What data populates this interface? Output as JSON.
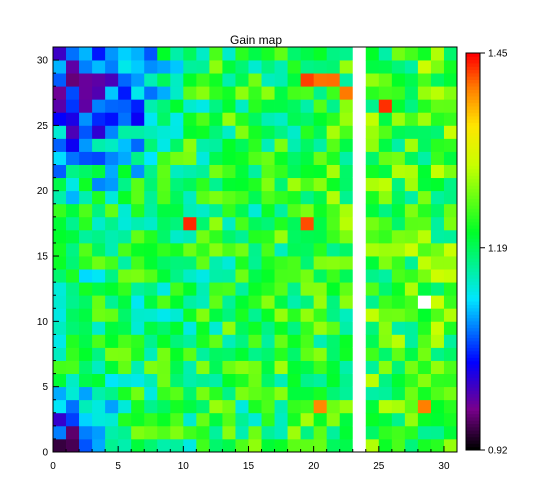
{
  "chart_data": {
    "type": "heatmap",
    "title": "Gain map",
    "xlabel": "",
    "ylabel": "",
    "xlim": [
      0,
      31
    ],
    "ylim": [
      0,
      31
    ],
    "x_ticks": [
      "0",
      "5",
      "10",
      "15",
      "20",
      "25",
      "30"
    ],
    "y_ticks": [
      "0",
      "5",
      "10",
      "15",
      "20",
      "25",
      "30"
    ],
    "colorbar": {
      "min": 0.92,
      "mid": 1.19,
      "max": 1.45,
      "labels": [
        "0.92",
        "1.19",
        "1.45"
      ]
    },
    "colormap": "rainbow (black-purple-blue-cyan-green-yellow-red)",
    "missing_columns": [
      23
    ],
    "missing_cells": [
      [
        23,
        12
      ],
      [
        28,
        11
      ]
    ],
    "grid": false
  }
}
